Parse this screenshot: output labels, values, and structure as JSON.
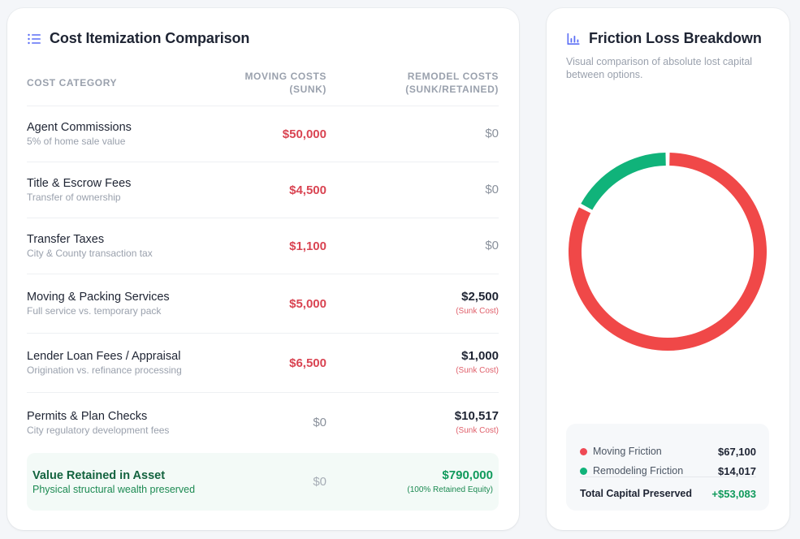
{
  "left_card": {
    "title": "Cost Itemization Comparison",
    "icon": "list-icon",
    "columns": {
      "category": "COST CATEGORY",
      "moving_line1": "MOVING COSTS",
      "moving_line2": "(SUNK)",
      "remodel_line1": "REMODEL COSTS",
      "remodel_line2": "(SUNK/RETAINED)"
    },
    "rows": [
      {
        "name": "Agent Commissions",
        "sub": "5% of home sale value",
        "moving": "$50,000",
        "remodel": "$0",
        "remodel_note": ""
      },
      {
        "name": "Title & Escrow Fees",
        "sub": "Transfer of ownership",
        "moving": "$4,500",
        "remodel": "$0",
        "remodel_note": ""
      },
      {
        "name": "Transfer Taxes",
        "sub": "City & County transaction tax",
        "moving": "$1,100",
        "remodel": "$0",
        "remodel_note": ""
      },
      {
        "name": "Moving & Packing Services",
        "sub": "Full service vs. temporary pack",
        "moving": "$5,000",
        "remodel": "$2,500",
        "remodel_note": "(Sunk Cost)"
      },
      {
        "name": "Lender Loan Fees / Appraisal",
        "sub": "Origination vs. refinance processing",
        "moving": "$6,500",
        "remodel": "$1,000",
        "remodel_note": "(Sunk Cost)"
      },
      {
        "name": "Permits & Plan Checks",
        "sub": "City regulatory development fees",
        "moving": "$0",
        "remodel": "$10,517",
        "remodel_note": "(Sunk Cost)"
      }
    ],
    "retained": {
      "name": "Value Retained in Asset",
      "sub": "Physical structural wealth preserved",
      "moving": "$0",
      "remodel": "$790,000",
      "remodel_note": "(100% Retained Equity)"
    }
  },
  "right_card": {
    "title": "Friction Loss Breakdown",
    "icon": "bar-chart-icon",
    "subtitle": "Visual comparison of absolute lost capital between options.",
    "legend": {
      "moving_label": "Moving Friction",
      "moving_value": "$67,100",
      "remodel_label": "Remodeling Friction",
      "remodel_value": "$14,017",
      "total_label": "Total Capital Preserved",
      "total_value": "+$53,083"
    }
  },
  "colors": {
    "moving": "#f04848",
    "remodel": "#10b37a",
    "accent_text": "#d94452",
    "positive_text": "#109a5c"
  },
  "chart_data": {
    "type": "pie",
    "categories": [
      "Moving Friction",
      "Remodeling Friction"
    ],
    "values": [
      67100,
      14017
    ],
    "colors": [
      "#f04848",
      "#10b37a"
    ]
  }
}
